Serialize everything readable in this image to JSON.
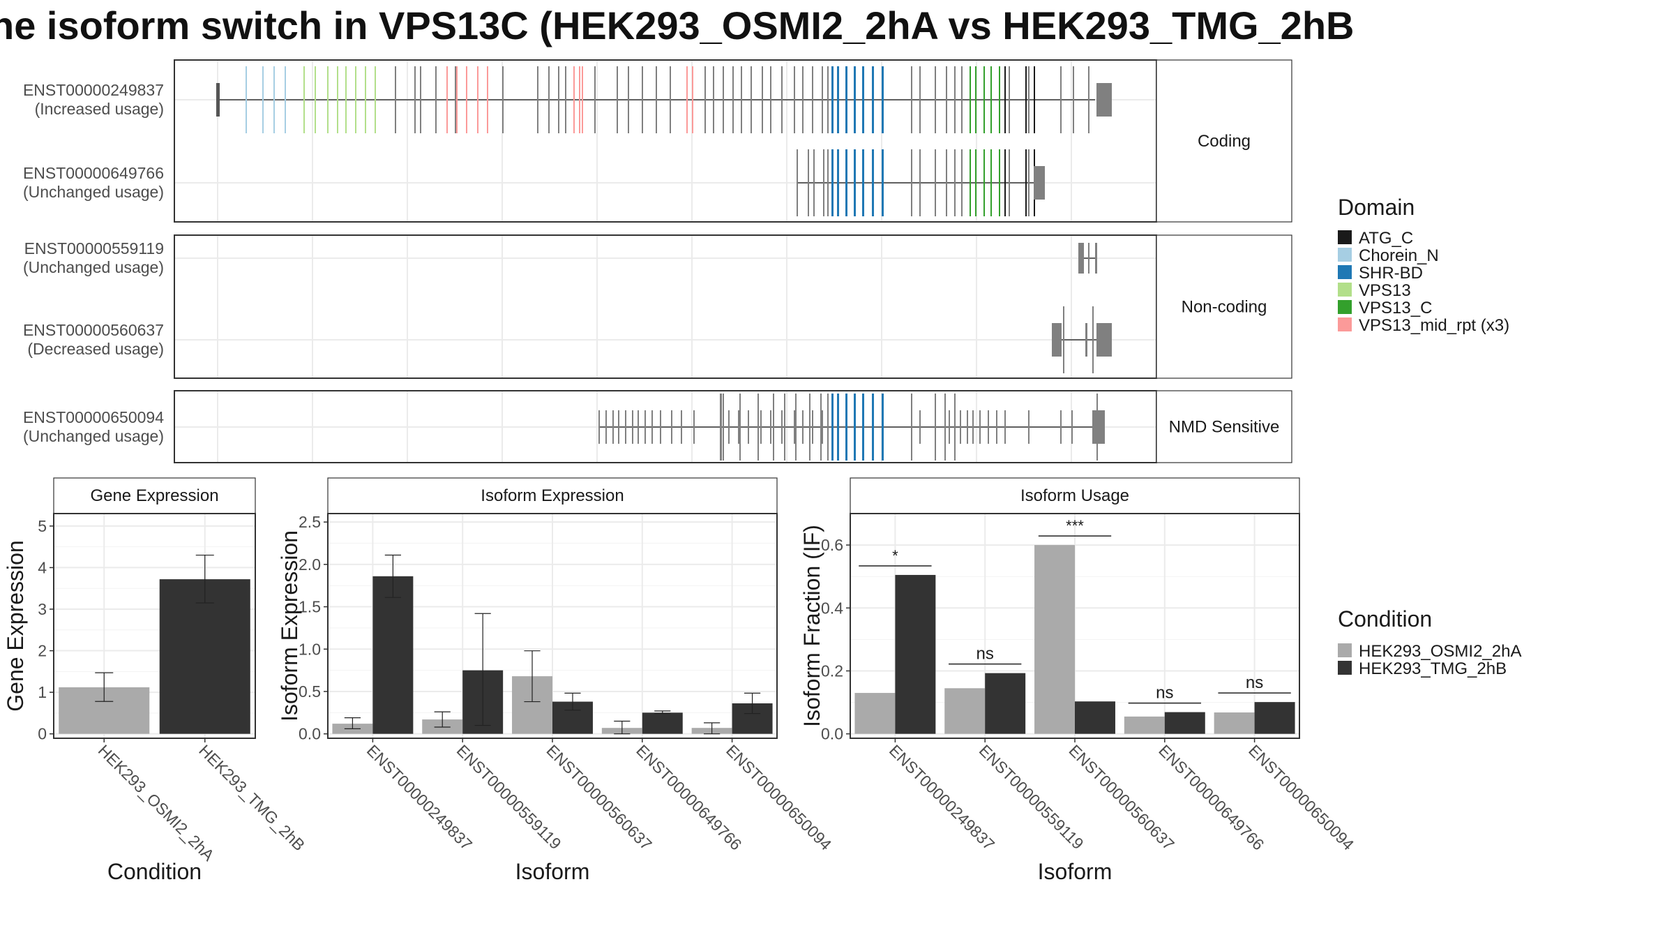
{
  "title": "ne isoform switch in VPS13C (HEK293_OSMI2_2hA vs HEK293_TMG_2hB",
  "colors": {
    "domain": {
      "ATG_C": "#1a1a1a",
      "Chorein_N": "#a6cee3",
      "SHR-BD": "#1f78b4",
      "VPS13": "#b2df8a",
      "VPS13_C": "#33a02c",
      "VPS13_mid_rpt (x3)": "#fb9a99",
      "none": "#808080"
    },
    "condition": {
      "HEK293_OSMI2_2hA": "#aaaaaa",
      "HEK293_TMG_2hB": "#333333"
    }
  },
  "structure_panels": [
    {
      "label": "Coding",
      "transcripts": [
        {
          "id": "ENST00000249837",
          "usage": "(Increased usage)"
        },
        {
          "id": "ENST00000649766",
          "usage": "(Unchanged usage)"
        }
      ]
    },
    {
      "label": "Non-coding",
      "transcripts": [
        {
          "id": "ENST00000559119",
          "usage": "(Unchanged usage)"
        },
        {
          "id": "ENST00000560637",
          "usage": "(Decreased usage)"
        }
      ]
    },
    {
      "label": "NMD Sensitive",
      "transcripts": [
        {
          "id": "ENST00000650094",
          "usage": "(Unchanged usage)"
        }
      ]
    }
  ],
  "legends": {
    "domain": {
      "title": "Domain",
      "items": [
        "ATG_C",
        "Chorein_N",
        "SHR-BD",
        "VPS13",
        "VPS13_C",
        "VPS13_mid_rpt (x3)"
      ]
    },
    "condition": {
      "title": "Condition",
      "items": [
        "HEK293_OSMI2_2hA",
        "HEK293_TMG_2hB"
      ]
    }
  },
  "chart_data": [
    {
      "type": "bar",
      "title": "Gene Expression",
      "xlabel": "Condition",
      "ylabel": "Gene Expression",
      "ylim": [
        0,
        5.3
      ],
      "yticks": [
        0,
        1,
        2,
        3,
        4,
        5
      ],
      "categories": [
        "HEK293_OSMI2_2hA",
        "HEK293_TMG_2hB"
      ],
      "values": [
        1.12,
        3.72
      ],
      "errors": [
        [
          0.78,
          1.47
        ],
        [
          3.15,
          4.3
        ]
      ]
    },
    {
      "type": "bar",
      "title": "Isoform Expression",
      "xlabel": "Isoform",
      "ylabel": "Isoform Expression",
      "ylim": [
        0,
        2.6
      ],
      "yticks": [
        0.0,
        0.5,
        1.0,
        1.5,
        2.0,
        2.5
      ],
      "categories": [
        "ENST00000249837",
        "ENST00000559119",
        "ENST00000560637",
        "ENST00000649766",
        "ENST00000650094"
      ],
      "series": [
        {
          "name": "HEK293_OSMI2_2hA",
          "values": [
            0.12,
            0.17,
            0.68,
            0.07,
            0.07
          ],
          "errors": [
            [
              0.06,
              0.19
            ],
            [
              0.08,
              0.26
            ],
            [
              0.38,
              0.98
            ],
            [
              0.0,
              0.15
            ],
            [
              0.0,
              0.13
            ]
          ]
        },
        {
          "name": "HEK293_TMG_2hB",
          "values": [
            1.86,
            0.75,
            0.38,
            0.25,
            0.36
          ],
          "errors": [
            [
              1.61,
              2.11
            ],
            [
              0.1,
              1.42
            ],
            [
              0.28,
              0.48
            ],
            [
              0.24,
              0.27
            ],
            [
              0.24,
              0.48
            ]
          ]
        }
      ]
    },
    {
      "type": "bar",
      "title": "Isoform Usage",
      "xlabel": "Isoform",
      "ylabel": "Isoform Fraction (IF)",
      "ylim": [
        0,
        0.7
      ],
      "yticks": [
        0.0,
        0.2,
        0.4,
        0.6
      ],
      "categories": [
        "ENST00000249837",
        "ENST00000559119",
        "ENST00000560637",
        "ENST00000649766",
        "ENST00000650094"
      ],
      "series": [
        {
          "name": "HEK293_OSMI2_2hA",
          "values": [
            0.13,
            0.145,
            0.6,
            0.055,
            0.068
          ]
        },
        {
          "name": "HEK293_TMG_2hB",
          "values": [
            0.505,
            0.193,
            0.103,
            0.069,
            0.101
          ]
        }
      ],
      "significance": [
        "*",
        "ns",
        "***",
        "ns",
        "ns"
      ]
    }
  ]
}
